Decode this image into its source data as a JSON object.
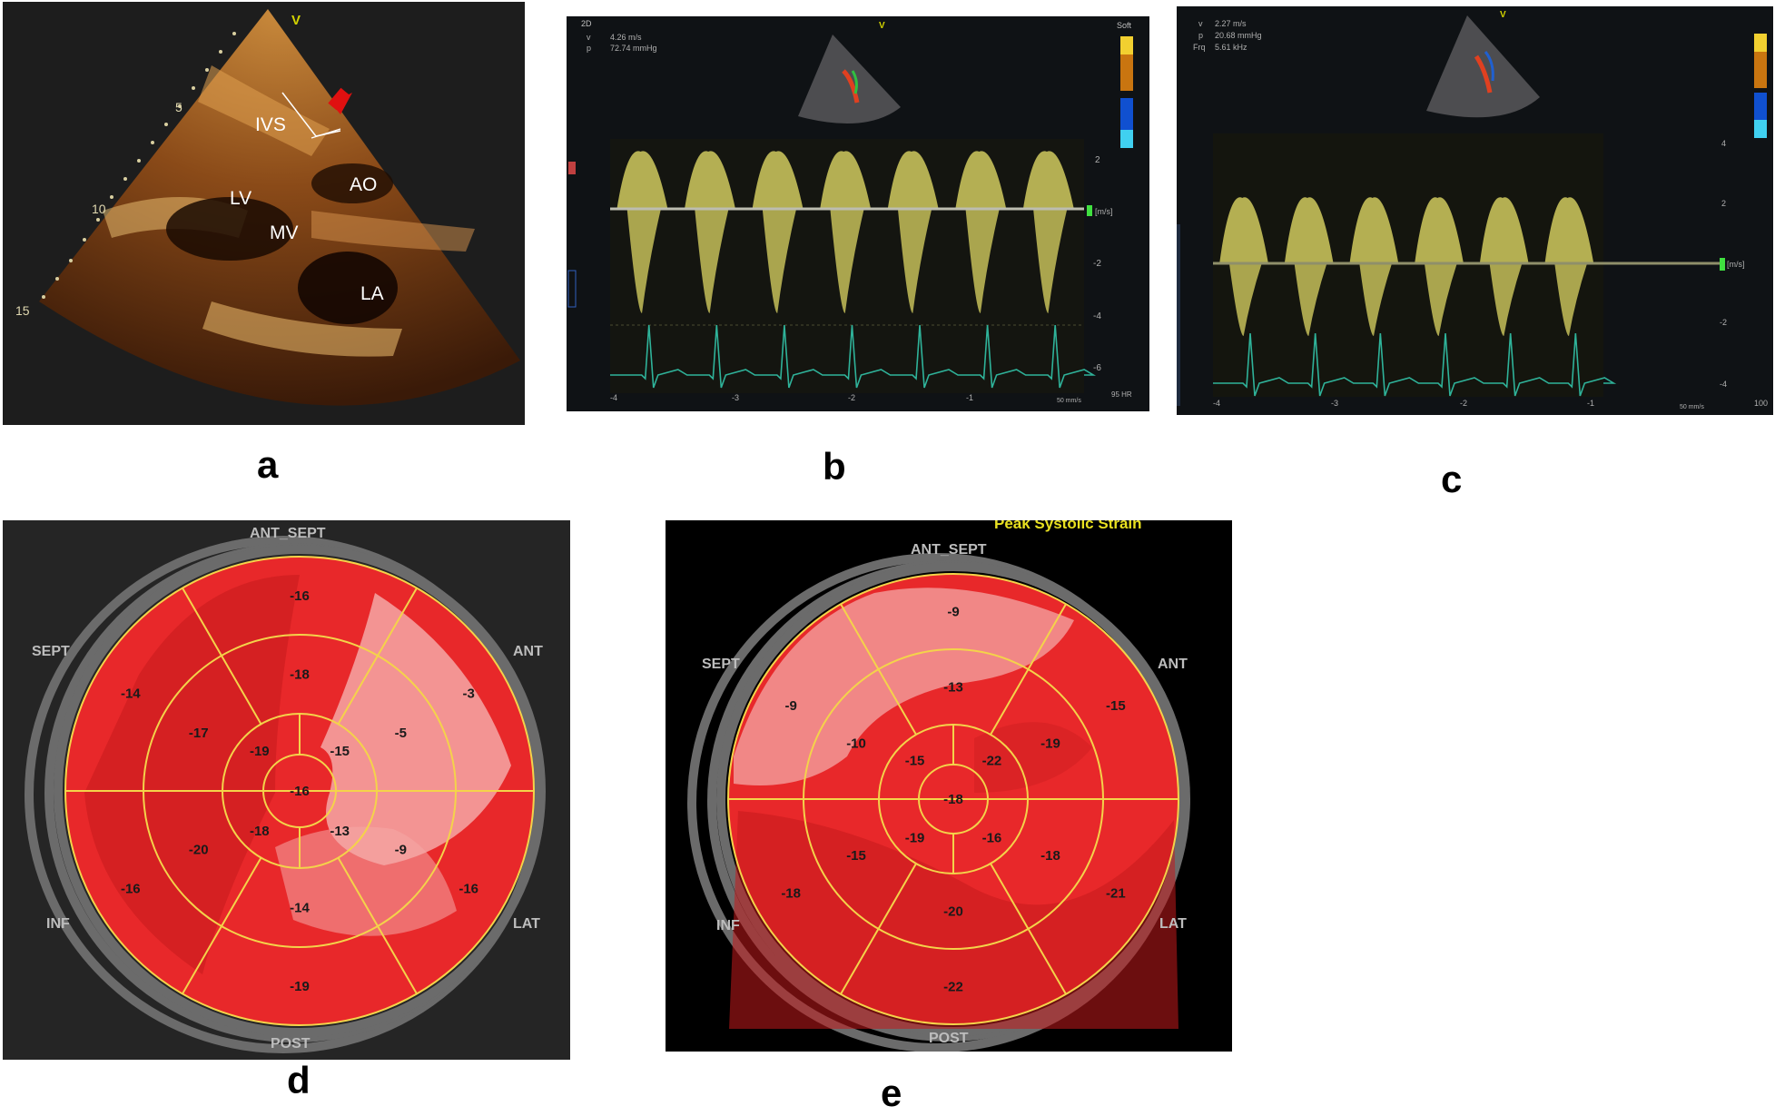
{
  "panels": {
    "a": {
      "letter": "a",
      "depth_marks": [
        "5",
        "10",
        "15"
      ],
      "orientation_mark": "V",
      "labels": {
        "ivs": "IVS",
        "lv": "LV",
        "ao": "AO",
        "mv": "MV",
        "la": "LA"
      }
    },
    "b": {
      "letter": "b",
      "header_mode": "2D",
      "readout": {
        "v_label": "v",
        "v_value": "4.26 m/s",
        "p_label": "p",
        "p_value": "72.74 mmHg"
      },
      "preset": "Soft",
      "orientation_mark": "V",
      "scale_ticks": [
        "2",
        "-2",
        "-4",
        "-6"
      ],
      "unit": "[m/s]",
      "time_ticks": [
        "-4",
        "-3",
        "-2",
        "-1"
      ],
      "sweep": "50 mm/s",
      "hr_label": "95 HR"
    },
    "c": {
      "letter": "c",
      "readout": {
        "v_label": "v",
        "v_value": "2.27 m/s",
        "p_label": "p",
        "p_value": "20.68 mmHg",
        "frq_label": "Frq",
        "frq_value": "5.61 kHz"
      },
      "orientation_mark": "V",
      "scale_ticks": [
        "4",
        "2",
        "-2",
        "-4"
      ],
      "unit": "[m/s]",
      "time_ticks": [
        "-4",
        "-3",
        "-2",
        "-1"
      ],
      "sweep": "50 mm/s",
      "right_tick": "100"
    },
    "d": {
      "letter": "d",
      "orientation_labels": {
        "ant_sept": "ANT_SEPT",
        "ant": "ANT",
        "lat": "LAT",
        "post": "POST",
        "inf": "INF",
        "sept": "SEPT"
      },
      "segments": {
        "basal": [
          "-16",
          "-3",
          "-16",
          "-19",
          "-16",
          "-14"
        ],
        "mid": [
          "-18",
          "-5",
          "-9",
          "-14",
          "-20",
          "-17"
        ],
        "apical": [
          "-15",
          "-13",
          "-18",
          "-19"
        ],
        "apex": "-16"
      }
    },
    "e": {
      "letter": "e",
      "title": "Peak Systolic Strain",
      "orientation_labels": {
        "ant_sept": "ANT_SEPT",
        "ant": "ANT",
        "lat": "LAT",
        "post": "POST",
        "inf": "INF",
        "sept": "SEPT"
      },
      "segments": {
        "basal": [
          "-9",
          "-15",
          "-21",
          "-22",
          "-18",
          "-9"
        ],
        "mid": [
          "-13",
          "-19",
          "-18",
          "-20",
          "-15",
          "-10"
        ],
        "apical": [
          "-22",
          "-16",
          "-19",
          "-15"
        ],
        "apex": "-18"
      }
    }
  },
  "colors": {
    "strain_base": "#e8282a",
    "strain_dark": "#c41a1c",
    "strain_light": "#f4a7a6",
    "grid_line": "#f4d34a",
    "ring_gray": "#6b6b6b",
    "doppler_yellow": "#e9e36a",
    "ecg_teal": "#2fb39a"
  }
}
